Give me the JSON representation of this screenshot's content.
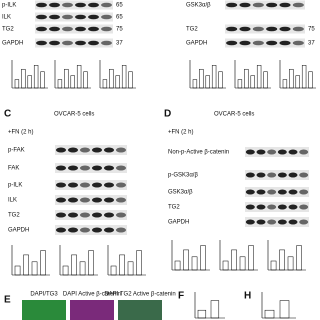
{
  "panels": {
    "top_left": {
      "rows": [
        "p-ILK",
        "ILK",
        "TG2",
        "GAPDH"
      ],
      "markers": [
        "65",
        "65",
        "75",
        "37"
      ]
    },
    "top_right": {
      "rows": [
        "GSK3α/β",
        "TG2",
        "GAPDH"
      ],
      "markers": [
        "75",
        "37"
      ]
    },
    "c": {
      "letter": "C",
      "title": "OVCAR-5 cells",
      "treatment": "+FN (2 h)",
      "rows": [
        "p-FAK",
        "FAK",
        "p-ILK",
        "ILK",
        "TG2",
        "GAPDH"
      ]
    },
    "d": {
      "letter": "D",
      "title": "OVCAR-5 cells",
      "treatment": "+FN (2 h)",
      "rows": [
        "Non-p-Active β-catenin",
        "p-GSK3α/β",
        "GSK3α/β",
        "TG2",
        "GAPDH"
      ]
    },
    "e": {
      "letter": "E",
      "images": [
        "DAPI/TG3",
        "DAPI Active β-catenin",
        "DAPI TG2 Active β-catenin"
      ]
    },
    "f": {
      "letter": "F"
    },
    "h": {
      "letter": "H"
    }
  }
}
